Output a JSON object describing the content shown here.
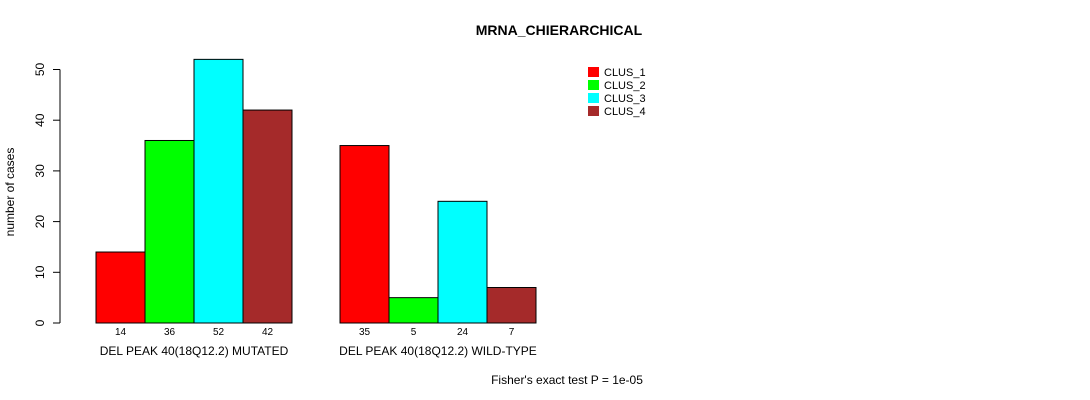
{
  "chart_data": {
    "type": "bar",
    "title": "MRNA_CHIERARCHICAL",
    "ylabel": "number of cases",
    "xlabel": "",
    "ylim": [
      0,
      52
    ],
    "yticks": [
      0,
      10,
      20,
      30,
      40,
      50
    ],
    "categories": [
      "DEL PEAK 40(18Q12.2) MUTATED",
      "DEL PEAK 40(18Q12.2) WILD-TYPE"
    ],
    "series": [
      {
        "name": "CLUS_1",
        "color": "#ff0000",
        "values": [
          14,
          35
        ]
      },
      {
        "name": "CLUS_2",
        "color": "#00ff00",
        "values": [
          36,
          5
        ]
      },
      {
        "name": "CLUS_3",
        "color": "#00ffff",
        "values": [
          52,
          24
        ]
      },
      {
        "name": "CLUS_4",
        "color": "#a52a2a",
        "values": [
          42,
          7
        ]
      }
    ],
    "legend_position": "top-right",
    "grid": false,
    "annotation": "Fisher's exact test P = 1e-05"
  }
}
